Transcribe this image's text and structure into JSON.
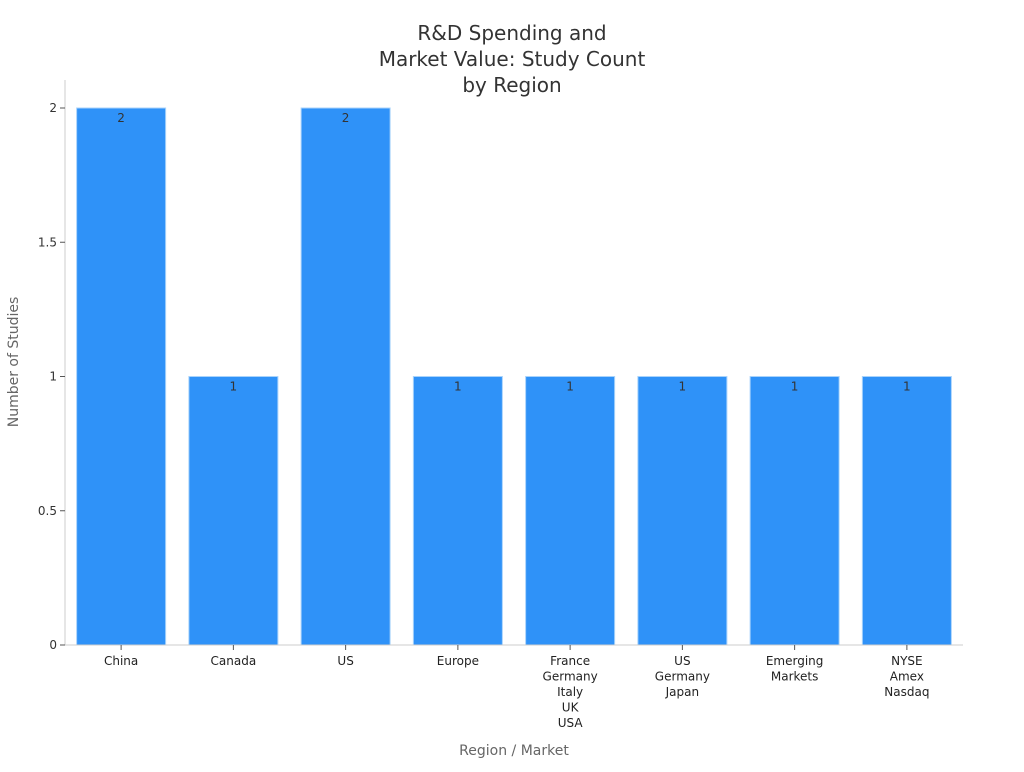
{
  "chart_data": {
    "type": "bar",
    "title": [
      "R&D Spending and",
      "Market Value: Study Count",
      "by Region"
    ],
    "xlabel": "Region / Market",
    "ylabel": "Number of Studies",
    "categories": [
      [
        "China"
      ],
      [
        "Canada"
      ],
      [
        "US"
      ],
      [
        "Europe"
      ],
      [
        "France",
        "Germany",
        "Italy",
        "UK",
        "USA"
      ],
      [
        "US",
        "Germany",
        "Japan"
      ],
      [
        "Emerging",
        "Markets"
      ],
      [
        "NYSE",
        "Amex",
        "Nasdaq"
      ]
    ],
    "values": [
      2,
      1,
      2,
      1,
      1,
      1,
      1,
      1
    ],
    "data_labels": [
      "2",
      "1",
      "2",
      "1",
      "1",
      "1",
      "1",
      "1"
    ],
    "ylim": [
      0,
      2.1
    ],
    "yticks": [
      0,
      0.5,
      1,
      1.5,
      2
    ],
    "ytick_labels": [
      "0",
      "0.5",
      "1",
      "1.5",
      "2"
    ],
    "grid": false,
    "colors": {
      "bar": "#2f92f8",
      "bar_edge": "#a9d3fb",
      "axis": "#cccccc",
      "text": "#333333",
      "label": "#666666"
    }
  }
}
